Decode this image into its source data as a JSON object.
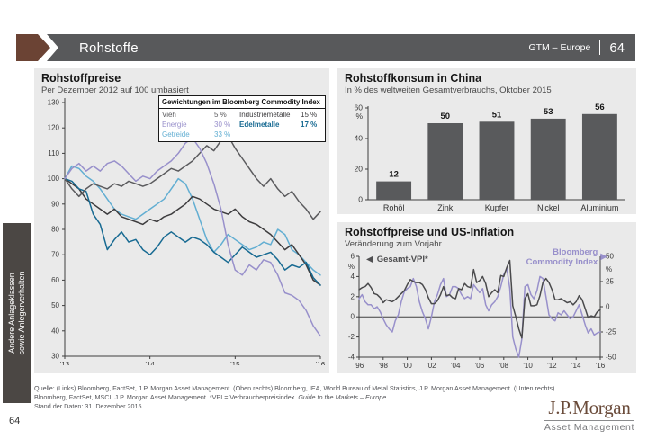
{
  "header": {
    "title": "Rohstoffe",
    "right_label": "GTM – Europe",
    "page_number": "64"
  },
  "sidebar": {
    "line1": "Andere Anlageklassen",
    "line2": "sowie Anlegerverhalten"
  },
  "icons": {
    "left_arrow": "◀",
    "right_arrow": "▶"
  },
  "colors": {
    "header_gray": "#58595b",
    "accent_brown": "#6b4334",
    "panel_bg": "#eaeaea",
    "logo_brown": "#6a4b3a",
    "purple": "#9890cb",
    "light_blue": "#62aed2",
    "teal": "#176a92",
    "bar_gray": "#595a5c"
  },
  "chart_data": [
    {
      "type": "line",
      "title": "Rohstoffpreise",
      "subtitle": "Per Dezember 2012 auf 100 umbasiert",
      "x_range": [
        2013,
        2016
      ],
      "xticks": [
        2013,
        2014,
        2015,
        2016
      ],
      "xtick_labels": [
        "'13",
        "'14",
        "'15",
        "'16"
      ],
      "ylim": [
        30,
        130
      ],
      "yticks": [
        30,
        40,
        50,
        60,
        70,
        80,
        90,
        100,
        110,
        120,
        130
      ],
      "grid": false,
      "legend": {
        "title": "Gewichtungen im Bloomberg Commodity Index",
        "entries": [
          {
            "label": "Vieh",
            "weight": "5 %",
            "color": "#5b5b5e",
            "bold": false
          },
          {
            "label": "Energie",
            "weight": "30 %",
            "color": "#9890cb",
            "bold": false
          },
          {
            "label": "Getreide",
            "weight": "33 %",
            "color": "#62aed2",
            "bold": false
          },
          {
            "label": "Industriemetalle",
            "weight": "15 %",
            "color": "#3d3c3e",
            "bold": false
          },
          {
            "label": "Edelmetalle",
            "weight": "17 %",
            "color": "#176a92",
            "bold": true
          }
        ]
      },
      "series": [
        {
          "name": "Getreide",
          "color": "#62aed2",
          "values": [
            100,
            105,
            104,
            101,
            99,
            96,
            92,
            88,
            86,
            85,
            84,
            86,
            88,
            90,
            92,
            96,
            100,
            98,
            92,
            84,
            76,
            71,
            74,
            78,
            76,
            74,
            72,
            73,
            75,
            74,
            80,
            78,
            72,
            70,
            67,
            64,
            62
          ]
        },
        {
          "name": "Industriemetalle",
          "color": "#3d3c3e",
          "values": [
            100,
            98,
            96,
            92,
            90,
            88,
            86,
            88,
            85,
            84,
            83,
            82,
            84,
            83,
            85,
            86,
            88,
            90,
            93,
            92,
            90,
            88,
            87,
            86,
            88,
            85,
            83,
            82,
            80,
            78,
            75,
            72,
            74,
            70,
            66,
            60,
            58
          ]
        },
        {
          "name": "Edelmetalle",
          "color": "#176a92",
          "values": [
            100,
            99,
            96,
            95,
            86,
            82,
            72,
            76,
            79,
            75,
            76,
            72,
            70,
            73,
            77,
            79,
            77,
            75,
            77,
            76,
            74,
            71,
            69,
            67,
            70,
            73,
            71,
            69,
            70,
            71,
            68,
            64,
            66,
            65,
            67,
            61,
            58
          ]
        },
        {
          "name": "Vieh",
          "color": "#5b5b5e",
          "values": [
            100,
            96,
            93,
            96,
            98,
            97,
            96,
            98,
            97,
            99,
            98,
            97,
            98,
            100,
            102,
            104,
            103,
            105,
            107,
            110,
            113,
            111,
            115,
            117,
            112,
            108,
            104,
            100,
            97,
            100,
            96,
            93,
            95,
            91,
            88,
            84,
            87
          ]
        },
        {
          "name": "Energie",
          "color": "#9890cb",
          "values": [
            100,
            104,
            106,
            103,
            105,
            103,
            106,
            107,
            105,
            102,
            99,
            101,
            100,
            103,
            105,
            107,
            110,
            114,
            116,
            112,
            106,
            98,
            88,
            74,
            64,
            62,
            66,
            64,
            68,
            67,
            62,
            55,
            54,
            52,
            48,
            42,
            38
          ]
        }
      ]
    },
    {
      "type": "bar",
      "title": "Rohstoffkonsum in China",
      "subtitle": "In % des weltweiten Gesamtverbrauchs, Oktober 2015",
      "categories": [
        "Rohöl",
        "Zink",
        "Kupfer",
        "Nickel",
        "Aluminium"
      ],
      "values": [
        12,
        50,
        51,
        53,
        56
      ],
      "ylim": [
        0,
        60
      ],
      "yticks": [
        0,
        20,
        40,
        60
      ],
      "unit": "%",
      "bar_color": "#595a5c"
    },
    {
      "type": "line",
      "title": "Rohstoffpreise und US-Inflation",
      "subtitle": "Veränderung zum Vorjahr",
      "x_range": [
        1996,
        2016
      ],
      "xticks": [
        1996,
        1998,
        2000,
        2002,
        2004,
        2006,
        2008,
        2010,
        2012,
        2014,
        2016
      ],
      "xtick_labels": [
        "'96",
        "'98",
        "'00",
        "'02",
        "'04",
        "'06",
        "'08",
        "'10",
        "'12",
        "'14",
        "'16"
      ],
      "left_ylim": [
        -4,
        6
      ],
      "left_yticks": [
        6,
        4,
        2,
        0,
        -2,
        -4
      ],
      "right_ylim": [
        -50,
        50
      ],
      "right_yticks": [
        50,
        25,
        0,
        -25,
        -50
      ],
      "unit": "%",
      "series": [
        {
          "name": "Gesamt-VPI*",
          "axis": "left",
          "color": "#4a4a4c",
          "values": [
            2.7,
            2.9,
            3.0,
            3.3,
            2.9,
            2.3,
            2.2,
            1.9,
            1.4,
            1.7,
            1.6,
            1.5,
            1.7,
            2.0,
            2.3,
            2.6,
            3.2,
            3.7,
            3.5,
            3.4,
            3.4,
            3.2,
            2.7,
            1.9,
            1.3,
            1.3,
            1.6,
            2.2,
            3.0,
            2.1,
            2.2,
            1.9,
            1.8,
            2.8,
            2.7,
            3.3,
            3.0,
            2.9,
            4.7,
            3.4,
            3.6,
            4.0,
            3.3,
            2.0,
            2.4,
            2.7,
            2.4,
            4.1,
            4.0,
            4.9,
            5.6,
            1.1,
            0.0,
            -1.2,
            -2.1,
            1.8,
            2.3,
            1.1,
            1.1,
            1.2,
            2.1,
            3.4,
            3.8,
            3.4,
            2.7,
            1.7,
            1.7,
            1.8,
            1.6,
            1.4,
            1.5,
            1.2,
            1.5,
            2.1,
            1.7,
            0.8,
            -0.1,
            0.1,
            0.0,
            0.5,
            0.7
          ]
        },
        {
          "name": "Bloomberg Commodity Index",
          "axis": "right",
          "color": "#9890cb",
          "values": [
            8,
            12,
            5,
            2,
            2,
            -2,
            0,
            -5,
            -12,
            -18,
            -22,
            -25,
            -14,
            -8,
            5,
            15,
            18,
            20,
            28,
            20,
            5,
            -5,
            -12,
            -22,
            -10,
            5,
            12,
            22,
            28,
            10,
            12,
            20,
            20,
            18,
            12,
            8,
            10,
            8,
            22,
            18,
            14,
            18,
            2,
            -4,
            2,
            5,
            10,
            20,
            32,
            38,
            18,
            -30,
            -42,
            -50,
            -32,
            20,
            22,
            12,
            8,
            16,
            30,
            28,
            10,
            -8,
            -12,
            -14,
            -6,
            -8,
            -4,
            -8,
            -12,
            -10,
            -4,
            2,
            -8,
            -18,
            -26,
            -22,
            -28,
            -26,
            -25
          ]
        }
      ]
    }
  ],
  "footer": {
    "source_main": "Quelle: (Links) Bloomberg, FactSet, J.P. Morgan Asset Management. (Oben rechts) Bloomberg, IEA, World Bureau of Metal Statistics, J.P. Morgan Asset Management. (Unten rechts) Bloomberg, FactSet, MSCI, J.P. Morgan Asset Management. *VPI = Verbraucherpreisindex. ",
    "source_italic": "Guide to the Markets – Europe.",
    "source_stand": "Stand der Daten: 31. Dezember 2015.",
    "page_number": "64",
    "logo_title": "J.P.Morgan",
    "logo_subtitle": "Asset Management"
  }
}
